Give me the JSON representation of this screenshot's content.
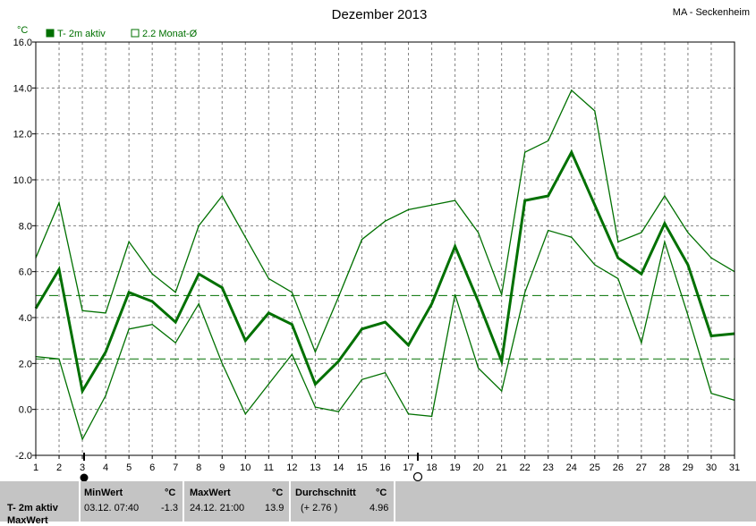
{
  "header": {
    "title": "Dezember 2013",
    "location": "MA - Seckenheim",
    "unit": "°C"
  },
  "legend": {
    "series_label": "T- 2m aktiv",
    "avg_label": "2.2 Monat-Ø"
  },
  "colors": {
    "line": "#007000",
    "fill_legend": "#007000",
    "grid": "#808080"
  },
  "chart_data": {
    "type": "line",
    "title": "Dezember 2013",
    "ylabel": "°C",
    "xlim": [
      1,
      31
    ],
    "ylim": [
      -2.0,
      16.0
    ],
    "y_ticks": [
      "-2.0",
      "0.0",
      "2.0",
      "4.0",
      "6.0",
      "8.0",
      "10.0",
      "12.0",
      "14.0",
      "16.0"
    ],
    "x_ticks": [
      "1",
      "2",
      "3",
      "4",
      "5",
      "6",
      "7",
      "8",
      "9",
      "10",
      "11",
      "12",
      "13",
      "14",
      "15",
      "16",
      "17",
      "18",
      "19",
      "20",
      "21",
      "22",
      "23",
      "24",
      "25",
      "26",
      "27",
      "28",
      "29",
      "30",
      "31"
    ],
    "x": [
      1,
      2,
      3,
      4,
      5,
      6,
      7,
      8,
      9,
      10,
      11,
      12,
      13,
      14,
      15,
      16,
      17,
      18,
      19,
      20,
      21,
      22,
      23,
      24,
      25,
      26,
      27,
      28,
      29,
      30,
      31
    ],
    "series": [
      {
        "name": "max",
        "width": 1.3,
        "values": [
          6.6,
          9.0,
          4.3,
          4.2,
          7.3,
          5.9,
          5.1,
          8.0,
          9.3,
          7.5,
          5.7,
          5.1,
          2.5,
          4.9,
          7.4,
          8.2,
          8.7,
          8.9,
          9.1,
          7.7,
          5.0,
          11.2,
          11.7,
          13.9,
          13.0,
          7.3,
          7.7,
          9.3,
          7.7,
          6.6,
          6.0
        ]
      },
      {
        "name": "T- 2m aktiv",
        "width": 3,
        "values": [
          4.4,
          6.1,
          0.8,
          2.5,
          5.1,
          4.7,
          3.8,
          5.9,
          5.3,
          3.0,
          4.2,
          3.7,
          1.1,
          2.1,
          3.5,
          3.8,
          2.8,
          4.6,
          7.1,
          4.7,
          2.1,
          9.1,
          9.3,
          11.2,
          8.9,
          6.6,
          5.9,
          8.1,
          6.3,
          3.2,
          3.3
        ]
      },
      {
        "name": "min",
        "width": 1.3,
        "values": [
          2.3,
          2.2,
          -1.3,
          0.6,
          3.5,
          3.7,
          2.9,
          4.6,
          2.0,
          -0.2,
          1.1,
          2.4,
          0.1,
          -0.1,
          1.3,
          1.6,
          -0.2,
          -0.3,
          5.0,
          1.8,
          0.8,
          5.1,
          7.8,
          7.5,
          6.3,
          5.7,
          2.9,
          7.3,
          4.1,
          0.7,
          0.4
        ]
      }
    ],
    "reference_lines": [
      {
        "label": "2.2 Monat-Ø",
        "value": 2.2
      },
      {
        "value": 4.96
      }
    ],
    "grid": true,
    "legend": "top-left"
  },
  "stats": {
    "row_label": "T- 2m aktiv",
    "row_label2": "MaxWert",
    "min": {
      "header": "MinWert",
      "unit": "°C",
      "datetime": "03.12.  07:40",
      "value": "-1.3"
    },
    "max": {
      "header": "MaxWert",
      "unit": "°C",
      "datetime": "24.12.  21:00",
      "value": "13.9"
    },
    "avg": {
      "header": "Durchschnitt",
      "unit": "°C",
      "delta": "(+ 2.76 )",
      "value": "4.96"
    }
  }
}
